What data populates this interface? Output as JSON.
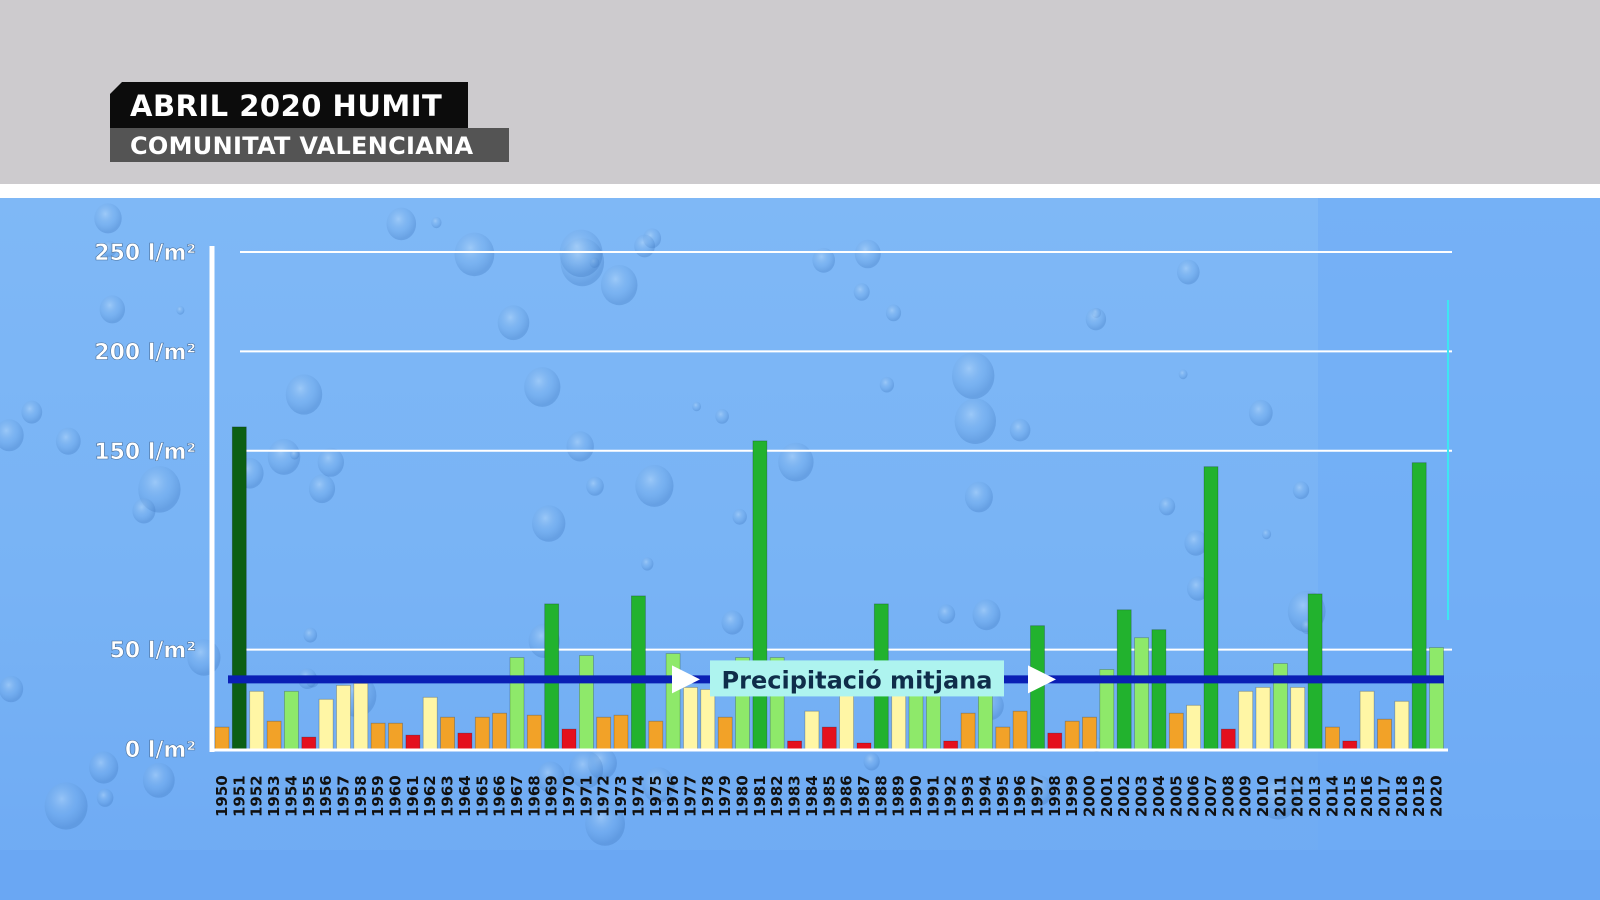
{
  "header": {
    "title": "ABRIL 2020 HUMIT",
    "subtitle": "COMUNITAT VALENCIANA"
  },
  "colors": {
    "very_wet": "#0c5f14",
    "wet": "#22b22e",
    "slightly_wet": "#8ee96a",
    "normal": "#fff6a5",
    "dry": "#f2a228",
    "very_dry": "#e4101d",
    "average_line": "#0a1fb4",
    "highlight_year": "#e8101d"
  },
  "chart_data": {
    "type": "bar",
    "title": "ABRIL 2020 HUMIT",
    "subtitle": "COMUNITAT VALENCIANA",
    "unit": "l/m²",
    "yticks": [
      "0 l/m²",
      "50 l/m²",
      "150 l/m²",
      "200 l/m²",
      "250 l/m²"
    ],
    "ytick_values": [
      0,
      50,
      150,
      200,
      250
    ],
    "ylim": [
      0,
      250
    ],
    "grid": true,
    "average_label": "Precipitació mitjana",
    "average_value": 35,
    "highlight_category": "2020",
    "categories": [
      "1950",
      "1951",
      "1952",
      "1953",
      "1954",
      "1955",
      "1956",
      "1957",
      "1958",
      "1959",
      "1960",
      "1961",
      "1962",
      "1963",
      "1964",
      "1965",
      "1966",
      "1967",
      "1968",
      "1969",
      "1970",
      "1971",
      "1972",
      "1973",
      "1974",
      "1975",
      "1976",
      "1977",
      "1978",
      "1979",
      "1980",
      "1981",
      "1982",
      "1983",
      "1984",
      "1985",
      "1986",
      "1987",
      "1988",
      "1989",
      "1990",
      "1991",
      "1992",
      "1993",
      "1994",
      "1995",
      "1996",
      "1997",
      "1998",
      "1999",
      "2000",
      "2001",
      "2002",
      "2003",
      "2004",
      "2005",
      "2006",
      "2007",
      "2008",
      "2009",
      "2010",
      "2011",
      "2012",
      "2013",
      "2014",
      "2015",
      "2016",
      "2017",
      "2018",
      "2019",
      "2020"
    ],
    "values": [
      11,
      162,
      29,
      14,
      29,
      6,
      25,
      32,
      33,
      13,
      13,
      7,
      26,
      16,
      8,
      16,
      18,
      46,
      17,
      73,
      10,
      47,
      16,
      17,
      77,
      14,
      48,
      31,
      30,
      16,
      46,
      155,
      46,
      4,
      19,
      11,
      27,
      3,
      73,
      40,
      41,
      43,
      4,
      18,
      30,
      11,
      19,
      62,
      8,
      14,
      16,
      40,
      70,
      56,
      60,
      18,
      22,
      142,
      10,
      29,
      31,
      43,
      31,
      78,
      11,
      4,
      29,
      15,
      24,
      144,
      51
    ],
    "classes": [
      "dry",
      "very_wet",
      "normal",
      "dry",
      "slightly_wet",
      "very_dry",
      "normal",
      "normal",
      "normal",
      "dry",
      "dry",
      "very_dry",
      "normal",
      "dry",
      "very_dry",
      "dry",
      "dry",
      "slightly_wet",
      "dry",
      "wet",
      "very_dry",
      "slightly_wet",
      "dry",
      "dry",
      "wet",
      "dry",
      "slightly_wet",
      "normal",
      "normal",
      "dry",
      "slightly_wet",
      "wet",
      "slightly_wet",
      "very_dry",
      "normal",
      "very_dry",
      "normal",
      "very_dry",
      "wet",
      "normal",
      "slightly_wet",
      "slightly_wet",
      "very_dry",
      "dry",
      "slightly_wet",
      "dry",
      "dry",
      "wet",
      "very_dry",
      "dry",
      "dry",
      "slightly_wet",
      "wet",
      "slightly_wet",
      "wet",
      "dry",
      "normal",
      "wet",
      "very_dry",
      "normal",
      "normal",
      "slightly_wet",
      "normal",
      "wet",
      "dry",
      "very_dry",
      "normal",
      "dry",
      "normal",
      "wet",
      "slightly_wet"
    ]
  }
}
